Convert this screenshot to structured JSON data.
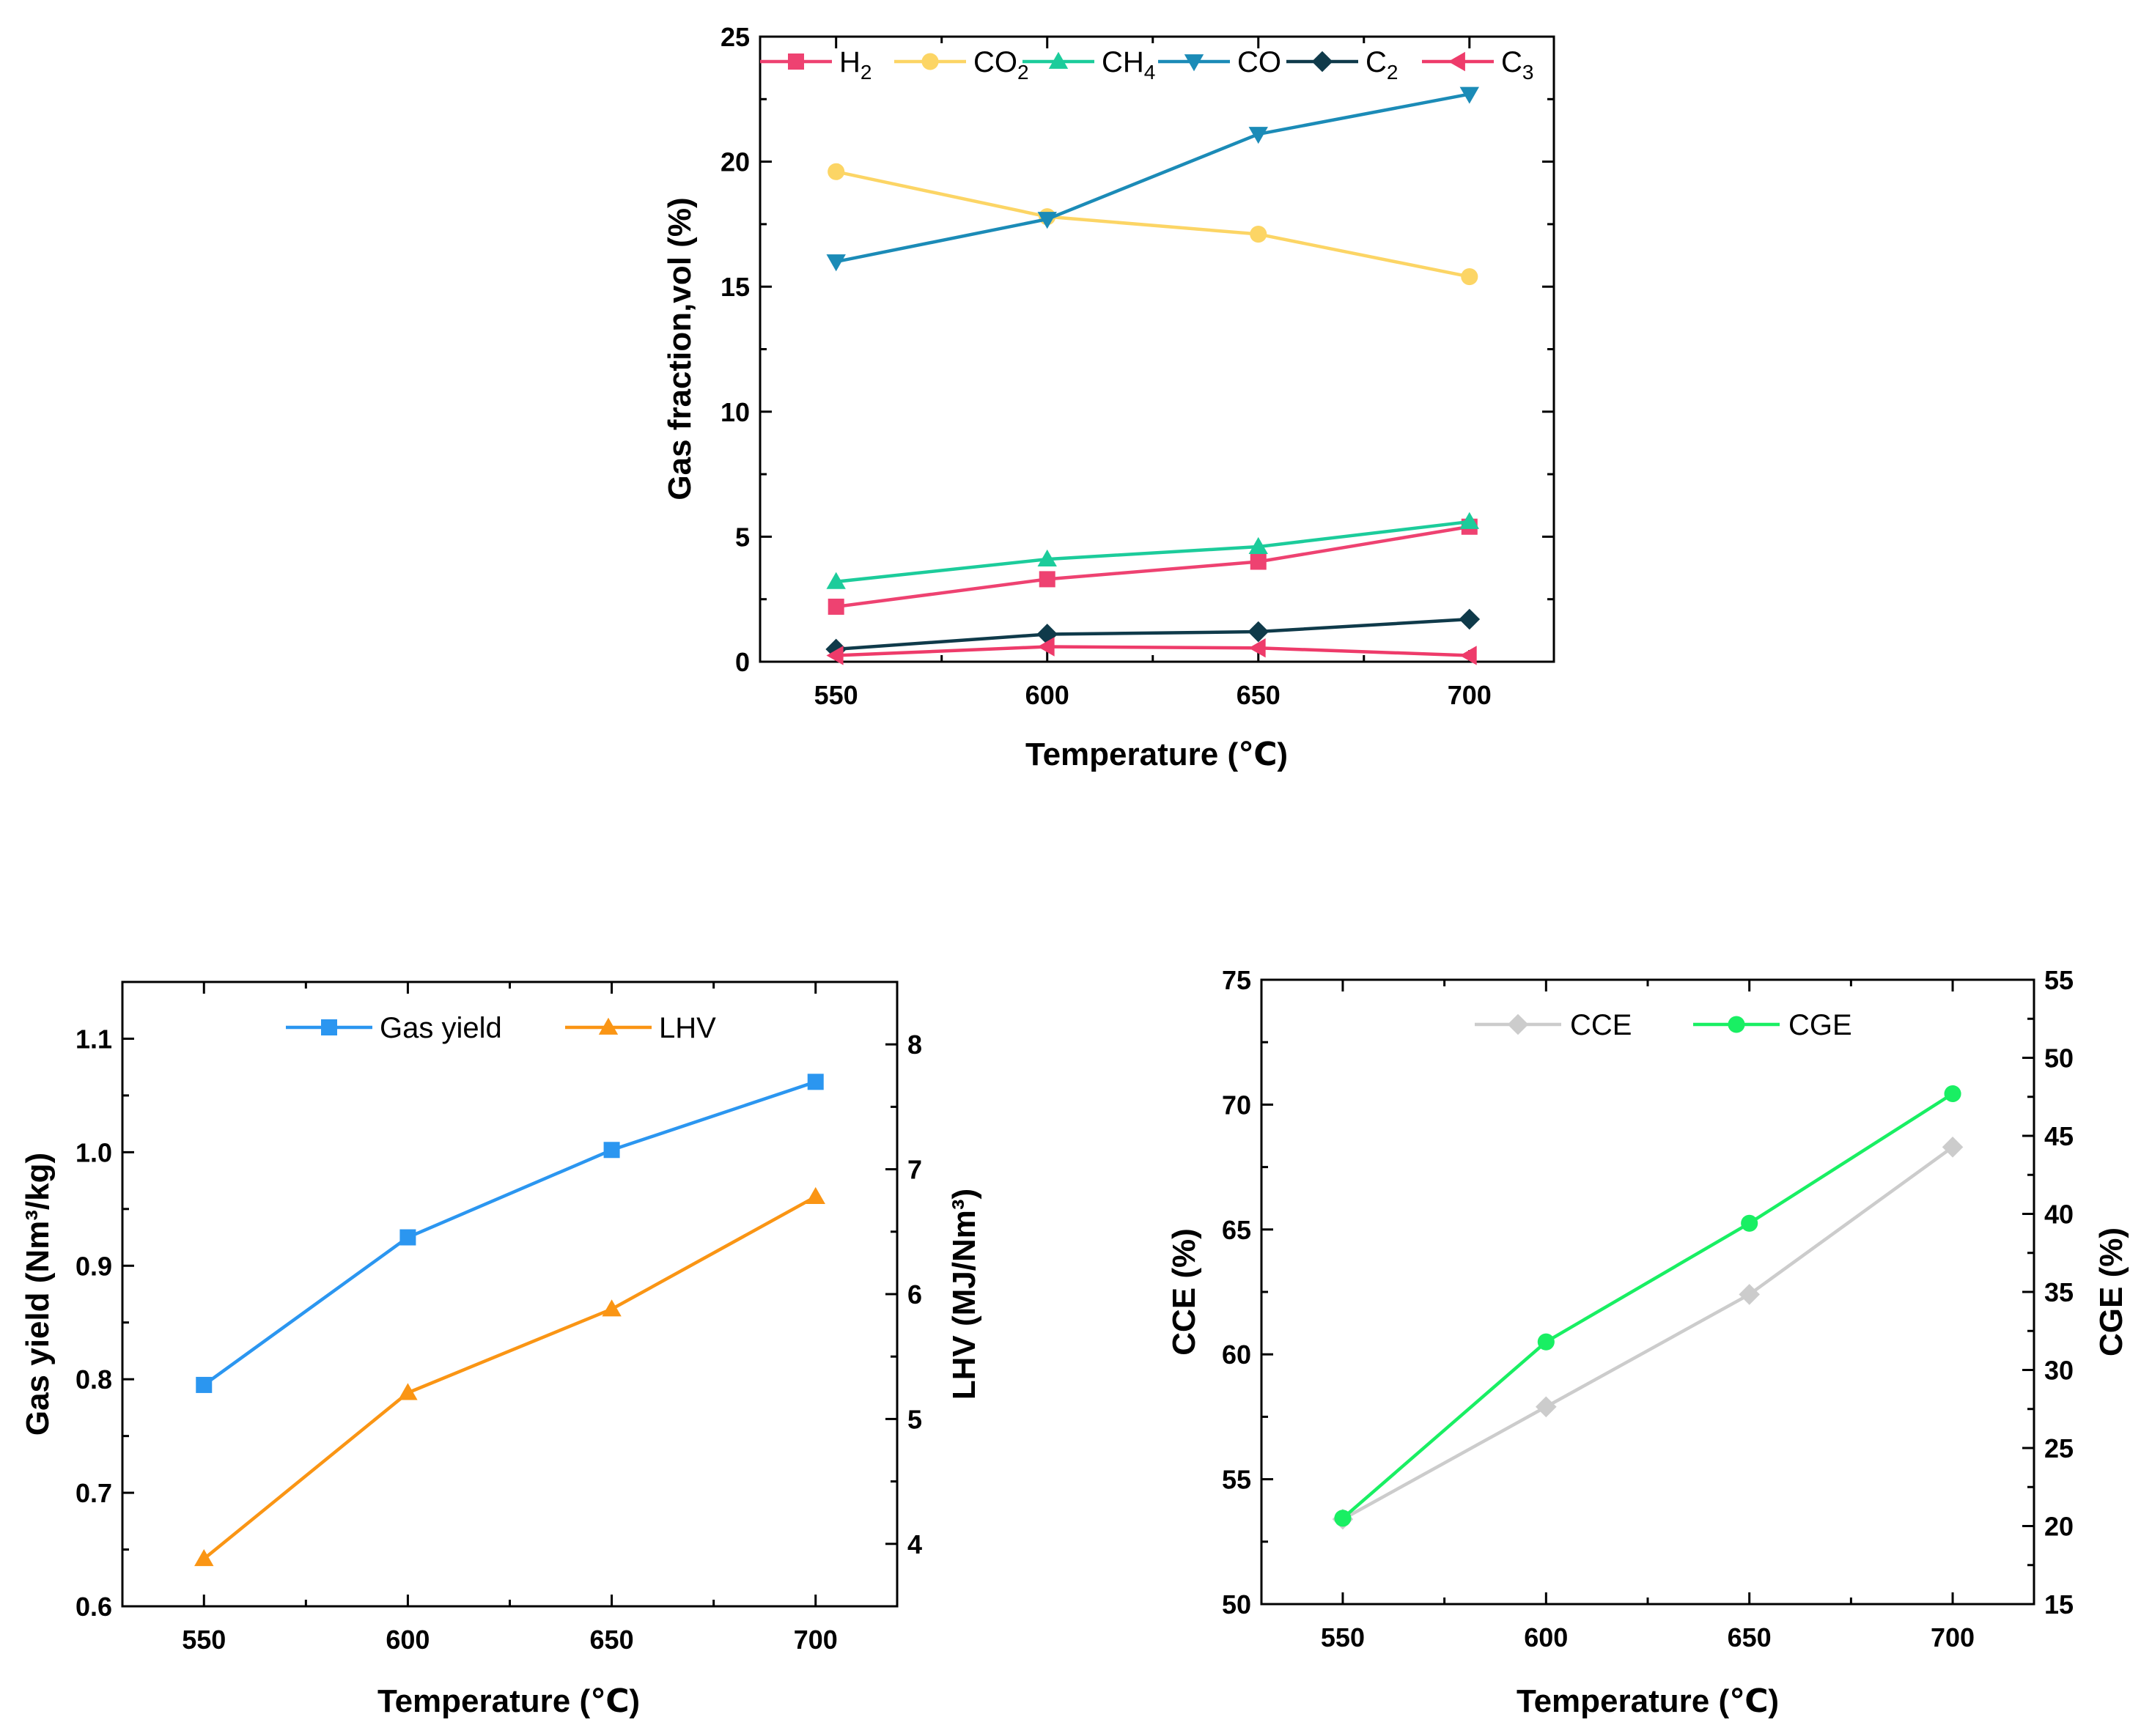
{
  "colors": {
    "h2": "#ee4271",
    "co2": "#fcd565",
    "ch4": "#1ccc9b",
    "co": "#1b8bb7",
    "c2": "#0f3a4a",
    "c3": "#ee3b6a",
    "gas_yield": "#2b96f0",
    "lhv": "#fa9514",
    "cce": "#cccccc",
    "cge": "#19ef63"
  },
  "chart_data": [
    {
      "id": "gas-composition",
      "type": "line",
      "xlabel": "Temperature (℃)",
      "ylabel": "Gas fraction,vol (%)",
      "x": [
        550,
        600,
        650,
        700
      ],
      "xticks": [
        "550",
        "600",
        "650",
        "700"
      ],
      "xlim": [
        532,
        720
      ],
      "ylim": [
        0,
        25
      ],
      "yticks": [
        "0",
        "5",
        "10",
        "15",
        "20",
        "25"
      ],
      "legend_position": "top",
      "series": [
        {
          "name": "H2",
          "label_main": "H",
          "label_sub": "2",
          "marker": "square",
          "color_key": "h2",
          "values": [
            2.2,
            3.3,
            4.0,
            5.4
          ]
        },
        {
          "name": "CO2",
          "label_main": "CO",
          "label_sub": "2",
          "marker": "circle",
          "color_key": "co2",
          "values": [
            19.6,
            17.8,
            17.1,
            15.4
          ]
        },
        {
          "name": "CH4",
          "label_main": "CH",
          "label_sub": "4",
          "marker": "triangle-up",
          "color_key": "ch4",
          "values": [
            3.2,
            4.1,
            4.6,
            5.6
          ]
        },
        {
          "name": "CO",
          "label_main": "CO",
          "label_sub": "",
          "marker": "triangle-down",
          "color_key": "co",
          "values": [
            16.0,
            17.7,
            21.1,
            22.7
          ]
        },
        {
          "name": "C2",
          "label_main": "C",
          "label_sub": "2",
          "marker": "diamond",
          "color_key": "c2",
          "values": [
            0.5,
            1.1,
            1.2,
            1.7
          ]
        },
        {
          "name": "C3",
          "label_main": "C",
          "label_sub": "3",
          "marker": "triangle-left",
          "color_key": "c3",
          "values": [
            0.25,
            0.6,
            0.55,
            0.25
          ]
        }
      ]
    },
    {
      "id": "gas-yield-lhv",
      "type": "line",
      "xlabel": "Temperature (℃)",
      "ylabel_left": "Gas yield (Nm³/kg)",
      "ylabel_right": "LHV (MJ/Nm³)",
      "x": [
        550,
        600,
        650,
        700
      ],
      "xticks": [
        "550",
        "600",
        "650",
        "700"
      ],
      "xlim": [
        530,
        720
      ],
      "ylim_left": [
        0.6,
        1.15
      ],
      "yticks_left": [
        "0.6",
        "0.7",
        "0.8",
        "0.9",
        "1.0",
        "1.1"
      ],
      "ylim_right": [
        3.5,
        8.5
      ],
      "yticks_right": [
        "4",
        "5",
        "6",
        "7",
        "8"
      ],
      "legend_position": "top",
      "series": [
        {
          "name": "Gas yield",
          "axis": "left",
          "marker": "square",
          "color_key": "gas_yield",
          "values": [
            0.795,
            0.925,
            1.002,
            1.062
          ]
        },
        {
          "name": "LHV",
          "axis": "right",
          "marker": "triangle-up",
          "color_key": "lhv",
          "values": [
            3.88,
            5.21,
            5.88,
            6.78
          ]
        }
      ]
    },
    {
      "id": "cce-cge",
      "type": "line",
      "xlabel": "Temperature (℃)",
      "ylabel_left": "CCE (%)",
      "ylabel_right": "CGE (%)",
      "x": [
        550,
        600,
        650,
        700
      ],
      "xticks": [
        "550",
        "600",
        "650",
        "700"
      ],
      "xlim": [
        530,
        720
      ],
      "ylim_left": [
        50,
        75
      ],
      "yticks_left": [
        "50",
        "55",
        "60",
        "65",
        "70",
        "75"
      ],
      "ylim_right": [
        15,
        55
      ],
      "yticks_right": [
        "15",
        "20",
        "25",
        "30",
        "35",
        "40",
        "45",
        "50",
        "55"
      ],
      "legend_position": "top",
      "series": [
        {
          "name": "CCE",
          "axis": "left",
          "marker": "diamond",
          "color_key": "cce",
          "values": [
            53.4,
            57.9,
            62.4,
            68.3
          ]
        },
        {
          "name": "CGE",
          "axis": "right",
          "marker": "circle",
          "color_key": "cge",
          "values": [
            20.5,
            31.8,
            39.4,
            47.7
          ]
        }
      ]
    }
  ]
}
